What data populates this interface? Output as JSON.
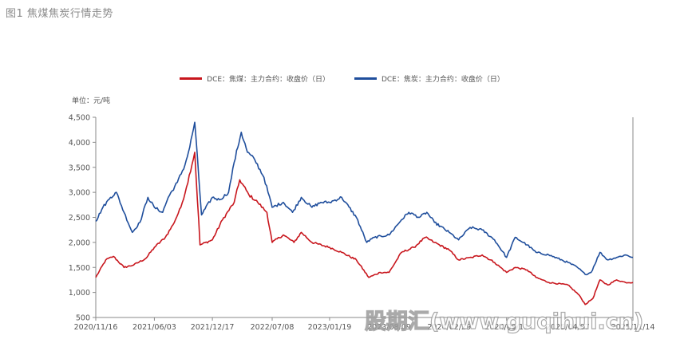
{
  "figure_title": "图1 焦煤焦炭行情走势",
  "watermark": "股期汇(www.guqihui.cn)",
  "chart_data": {
    "type": "line",
    "unit_label": "单位：元/吨",
    "ylim": [
      500,
      4500
    ],
    "y_ticks": [
      "500",
      "1,000",
      "1,500",
      "2,000",
      "2,500",
      "3,000",
      "3,500",
      "4,000",
      "4,500"
    ],
    "x_ticks": [
      "2020/11/16",
      "2021/06/03",
      "2021/12/17",
      "2022/07/08",
      "2023/01/19",
      "2023/08/09",
      "2024/02/29",
      "2024/09/11",
      "2025/04/07",
      "2025/11/14"
    ],
    "x_range": [
      "2020/11/16",
      "2025/11/14"
    ],
    "grid": false,
    "legend_position": "top",
    "series": [
      {
        "name": "DCE：焦煤：主力合约：收盘价（日）",
        "color": "#c8161d",
        "points": [
          [
            "2020/11/16",
            1300
          ],
          [
            "2020/12/20",
            1650
          ],
          [
            "2021/01/15",
            1720
          ],
          [
            "2021/02/20",
            1500
          ],
          [
            "2021/03/25",
            1550
          ],
          [
            "2021/05/05",
            1680
          ],
          [
            "2021/06/03",
            1900
          ],
          [
            "2021/07/10",
            2100
          ],
          [
            "2021/08/05",
            2350
          ],
          [
            "2021/09/01",
            2700
          ],
          [
            "2021/09/20",
            3100
          ],
          [
            "2021/10/18",
            3800
          ],
          [
            "2021/11/05",
            1950
          ],
          [
            "2021/12/17",
            2050
          ],
          [
            "2022/01/20",
            2450
          ],
          [
            "2022/03/01",
            2800
          ],
          [
            "2022/03/20",
            3250
          ],
          [
            "2022/04/20",
            2950
          ],
          [
            "2022/05/20",
            2800
          ],
          [
            "2022/06/20",
            2600
          ],
          [
            "2022/07/08",
            2000
          ],
          [
            "2022/08/15",
            2150
          ],
          [
            "2022/09/20",
            2000
          ],
          [
            "2022/10/15",
            2200
          ],
          [
            "2022/11/20",
            2000
          ],
          [
            "2023/01/19",
            1900
          ],
          [
            "2023/03/01",
            1800
          ],
          [
            "2023/04/20",
            1650
          ],
          [
            "2023/06/01",
            1300
          ],
          [
            "2023/07/10",
            1400
          ],
          [
            "2023/08/09",
            1400
          ],
          [
            "2023/09/20",
            1800
          ],
          [
            "2023/11/01",
            1900
          ],
          [
            "2023/12/10",
            2100
          ],
          [
            "2024/01/10",
            2000
          ],
          [
            "2024/02/29",
            1850
          ],
          [
            "2024/04/01",
            1650
          ],
          [
            "2024/05/15",
            1700
          ],
          [
            "2024/06/20",
            1750
          ],
          [
            "2024/08/01",
            1600
          ],
          [
            "2024/09/11",
            1400
          ],
          [
            "2024/10/10",
            1500
          ],
          [
            "2024/11/20",
            1450
          ],
          [
            "2024/12/20",
            1300
          ],
          [
            "2025/02/01",
            1200
          ],
          [
            "2025/04/07",
            1150
          ],
          [
            "2025/05/15",
            950
          ],
          [
            "2025/06/05",
            760
          ],
          [
            "2025/07/01",
            880
          ],
          [
            "2025/07/25",
            1250
          ],
          [
            "2025/08/20",
            1150
          ],
          [
            "2025/09/20",
            1250
          ],
          [
            "2025/10/20",
            1200
          ],
          [
            "2025/11/14",
            1200
          ]
        ]
      },
      {
        "name": "DCE：焦炭：主力合约：收盘价（日）",
        "color": "#1f4e9c",
        "points": [
          [
            "2020/11/16",
            2420
          ],
          [
            "2020/12/10",
            2700
          ],
          [
            "2021/01/05",
            2900
          ],
          [
            "2021/01/25",
            3000
          ],
          [
            "2021/02/20",
            2600
          ],
          [
            "2021/03/20",
            2200
          ],
          [
            "2021/04/15",
            2400
          ],
          [
            "2021/05/12",
            2900
          ],
          [
            "2021/06/03",
            2700
          ],
          [
            "2021/07/01",
            2600
          ],
          [
            "2021/07/20",
            2900
          ],
          [
            "2021/08/20",
            3200
          ],
          [
            "2021/09/15",
            3550
          ],
          [
            "2021/10/01",
            3900
          ],
          [
            "2021/10/18",
            4400
          ],
          [
            "2021/11/10",
            2550
          ],
          [
            "2021/12/17",
            2900
          ],
          [
            "2022/01/10",
            2850
          ],
          [
            "2022/02/10",
            3000
          ],
          [
            "2022/03/01",
            3600
          ],
          [
            "2022/03/25",
            4200
          ],
          [
            "2022/04/15",
            3800
          ],
          [
            "2022/05/10",
            3650
          ],
          [
            "2022/06/10",
            3300
          ],
          [
            "2022/07/08",
            2700
          ],
          [
            "2022/08/15",
            2800
          ],
          [
            "2022/09/15",
            2600
          ],
          [
            "2022/10/15",
            2900
          ],
          [
            "2022/11/20",
            2700
          ],
          [
            "2022/12/20",
            2800
          ],
          [
            "2023/01/19",
            2800
          ],
          [
            "2023/03/01",
            2900
          ],
          [
            "2023/04/20",
            2500
          ],
          [
            "2023/05/25",
            2000
          ],
          [
            "2023/06/20",
            2100
          ],
          [
            "2023/08/09",
            2150
          ],
          [
            "2023/09/20",
            2450
          ],
          [
            "2023/10/15",
            2600
          ],
          [
            "2023/11/20",
            2500
          ],
          [
            "2023/12/15",
            2600
          ],
          [
            "2024/01/10",
            2400
          ],
          [
            "2024/02/29",
            2200
          ],
          [
            "2024/04/01",
            2050
          ],
          [
            "2024/05/10",
            2300
          ],
          [
            "2024/06/20",
            2250
          ],
          [
            "2024/08/01",
            2050
          ],
          [
            "2024/09/11",
            1700
          ],
          [
            "2024/10/10",
            2100
          ],
          [
            "2024/11/20",
            1950
          ],
          [
            "2024/12/20",
            1800
          ],
          [
            "2025/02/01",
            1750
          ],
          [
            "2025/04/07",
            1600
          ],
          [
            "2025/05/10",
            1500
          ],
          [
            "2025/06/05",
            1360
          ],
          [
            "2025/06/25",
            1400
          ],
          [
            "2025/07/25",
            1800
          ],
          [
            "2025/08/20",
            1650
          ],
          [
            "2025/09/20",
            1700
          ],
          [
            "2025/10/20",
            1750
          ],
          [
            "2025/11/14",
            1700
          ]
        ]
      }
    ]
  }
}
